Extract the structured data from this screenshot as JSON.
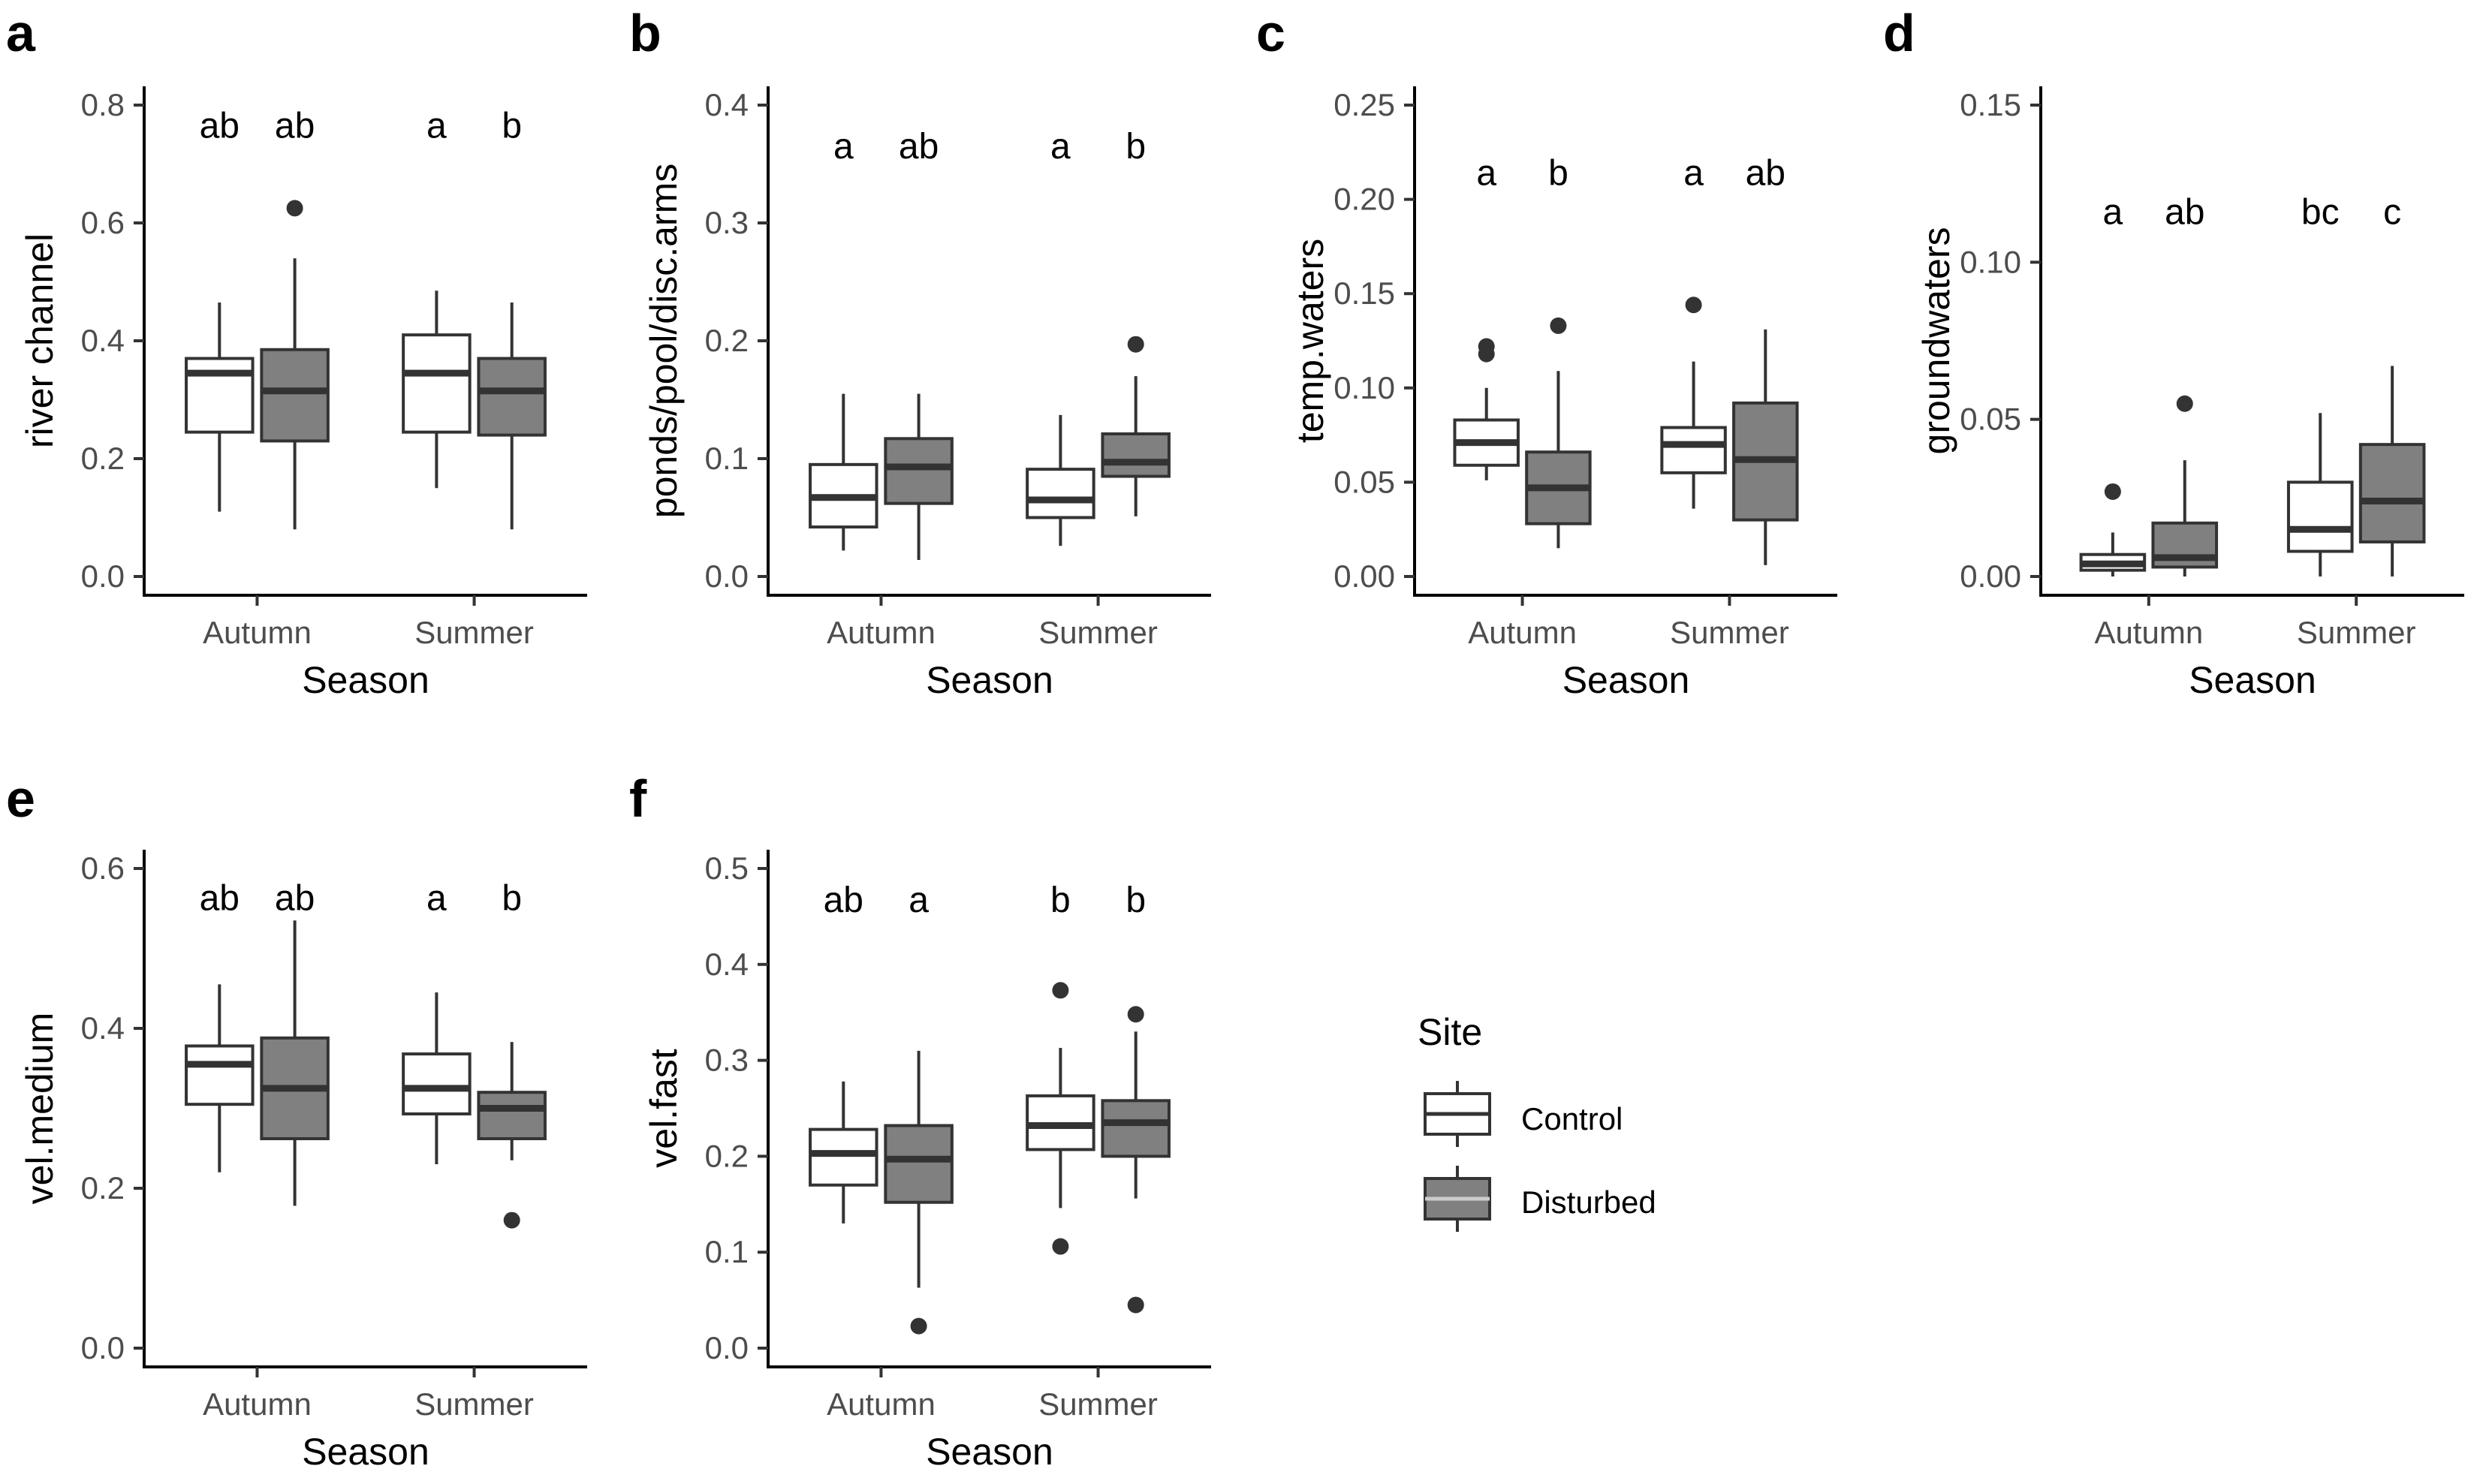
{
  "legend": {
    "title": "Site",
    "entries": [
      {
        "label": "Control",
        "fill": "#ffffff"
      },
      {
        "label": "Disturbed",
        "fill": "#808080"
      }
    ]
  },
  "colors": {
    "control_fill": "#ffffff",
    "disturbed_fill": "#808080",
    "line": "#333333",
    "axis": "#000000"
  },
  "chart_data": [
    {
      "panel": "a",
      "type": "box",
      "xlabel": "Season",
      "ylabel": "river channel",
      "categories": [
        "Autumn",
        "Summer"
      ],
      "ylim": [
        0,
        0.8
      ],
      "yticks": [
        "0.0",
        "0.2",
        "0.4",
        "0.6",
        "0.8"
      ],
      "series": [
        {
          "name": "Control",
          "boxes": [
            {
              "min": 0.11,
              "q1": 0.245,
              "median": 0.345,
              "q3": 0.37,
              "max": 0.465,
              "outliers": []
            },
            {
              "min": 0.15,
              "q1": 0.245,
              "median": 0.345,
              "q3": 0.41,
              "max": 0.485,
              "outliers": []
            }
          ]
        },
        {
          "name": "Disturbed",
          "boxes": [
            {
              "min": 0.08,
              "q1": 0.23,
              "median": 0.315,
              "q3": 0.385,
              "max": 0.54,
              "outliers": [
                0.625
              ]
            },
            {
              "min": 0.08,
              "q1": 0.24,
              "median": 0.315,
              "q3": 0.37,
              "max": 0.465,
              "outliers": []
            }
          ]
        }
      ],
      "sig_labels": [
        [
          "ab",
          "ab"
        ],
        [
          "a",
          "b"
        ]
      ],
      "sig_y": 0.765
    },
    {
      "panel": "b",
      "type": "box",
      "xlabel": "Season",
      "ylabel": "ponds/pool/disc.arms",
      "categories": [
        "Autumn",
        "Summer"
      ],
      "ylim": [
        0,
        0.4
      ],
      "yticks": [
        "0.0",
        "0.1",
        "0.2",
        "0.3",
        "0.4"
      ],
      "series": [
        {
          "name": "Control",
          "boxes": [
            {
              "min": 0.022,
              "q1": 0.042,
              "median": 0.067,
              "q3": 0.095,
              "max": 0.155,
              "outliers": []
            },
            {
              "min": 0.026,
              "q1": 0.05,
              "median": 0.065,
              "q3": 0.091,
              "max": 0.137,
              "outliers": []
            }
          ]
        },
        {
          "name": "Disturbed",
          "boxes": [
            {
              "min": 0.014,
              "q1": 0.062,
              "median": 0.093,
              "q3": 0.117,
              "max": 0.155,
              "outliers": []
            },
            {
              "min": 0.051,
              "q1": 0.085,
              "median": 0.097,
              "q3": 0.121,
              "max": 0.17,
              "outliers": [
                0.197
              ]
            }
          ]
        }
      ],
      "sig_labels": [
        [
          "a",
          "ab"
        ],
        [
          "a",
          "b"
        ]
      ],
      "sig_y": 0.365
    },
    {
      "panel": "c",
      "type": "box",
      "xlabel": "Season",
      "ylabel": "temp.waters",
      "categories": [
        "Autumn",
        "Summer"
      ],
      "ylim": [
        0,
        0.25
      ],
      "yticks": [
        "0.00",
        "0.05",
        "0.10",
        "0.15",
        "0.20",
        "0.25"
      ],
      "series": [
        {
          "name": "Control",
          "boxes": [
            {
              "min": 0.051,
              "q1": 0.059,
              "median": 0.071,
              "q3": 0.083,
              "max": 0.1,
              "outliers": [
                0.118,
                0.122
              ]
            },
            {
              "min": 0.036,
              "q1": 0.055,
              "median": 0.07,
              "q3": 0.079,
              "max": 0.114,
              "outliers": [
                0.144
              ]
            }
          ]
        },
        {
          "name": "Disturbed",
          "boxes": [
            {
              "min": 0.015,
              "q1": 0.028,
              "median": 0.047,
              "q3": 0.066,
              "max": 0.109,
              "outliers": [
                0.133
              ]
            },
            {
              "min": 0.006,
              "q1": 0.03,
              "median": 0.062,
              "q3": 0.092,
              "max": 0.131,
              "outliers": []
            }
          ]
        }
      ],
      "sig_labels": [
        [
          "a",
          "b"
        ],
        [
          "a",
          "ab"
        ]
      ],
      "sig_y": 0.214
    },
    {
      "panel": "d",
      "type": "box",
      "xlabel": "Season",
      "ylabel": "groundwaters",
      "categories": [
        "Autumn",
        "Summer"
      ],
      "ylim": [
        0,
        0.15
      ],
      "yticks": [
        "0.00",
        "0.05",
        "0.10",
        "0.15"
      ],
      "series": [
        {
          "name": "Control",
          "boxes": [
            {
              "min": 0.0,
              "q1": 0.002,
              "median": 0.004,
              "q3": 0.007,
              "max": 0.014,
              "outliers": [
                0.027
              ]
            },
            {
              "min": 0.0,
              "q1": 0.008,
              "median": 0.015,
              "q3": 0.03,
              "max": 0.052,
              "outliers": []
            }
          ]
        },
        {
          "name": "Disturbed",
          "boxes": [
            {
              "min": 0.0,
              "q1": 0.003,
              "median": 0.006,
              "q3": 0.017,
              "max": 0.037,
              "outliers": [
                0.055
              ]
            },
            {
              "min": 0.0,
              "q1": 0.011,
              "median": 0.024,
              "q3": 0.042,
              "max": 0.067,
              "outliers": []
            }
          ]
        }
      ],
      "sig_labels": [
        [
          "a",
          "ab"
        ],
        [
          "bc",
          "c"
        ]
      ],
      "sig_y": 0.116
    },
    {
      "panel": "e",
      "type": "box",
      "xlabel": "Season",
      "ylabel": "vel.medium",
      "categories": [
        "Autumn",
        "Summer"
      ],
      "ylim": [
        0,
        0.6
      ],
      "yticks": [
        "0.0",
        "0.2",
        "0.4",
        "0.6"
      ],
      "series": [
        {
          "name": "Control",
          "boxes": [
            {
              "min": 0.22,
              "q1": 0.305,
              "median": 0.355,
              "q3": 0.378,
              "max": 0.455,
              "outliers": []
            },
            {
              "min": 0.23,
              "q1": 0.293,
              "median": 0.325,
              "q3": 0.368,
              "max": 0.445,
              "outliers": []
            }
          ]
        },
        {
          "name": "Disturbed",
          "boxes": [
            {
              "min": 0.178,
              "q1": 0.262,
              "median": 0.325,
              "q3": 0.388,
              "max": 0.535,
              "outliers": []
            },
            {
              "min": 0.235,
              "q1": 0.262,
              "median": 0.3,
              "q3": 0.32,
              "max": 0.383,
              "outliers": [
                0.16
              ]
            }
          ]
        }
      ],
      "sig_labels": [
        [
          "ab",
          "ab"
        ],
        [
          "a",
          "b"
        ]
      ],
      "sig_y": 0.563
    },
    {
      "panel": "f",
      "type": "box",
      "xlabel": "Season",
      "ylabel": "vel.fast",
      "categories": [
        "Autumn",
        "Summer"
      ],
      "ylim": [
        0,
        0.5
      ],
      "yticks": [
        "0.0",
        "0.1",
        "0.2",
        "0.3",
        "0.4",
        "0.5"
      ],
      "series": [
        {
          "name": "Control",
          "boxes": [
            {
              "min": 0.13,
              "q1": 0.17,
              "median": 0.203,
              "q3": 0.228,
              "max": 0.278,
              "outliers": []
            },
            {
              "min": 0.146,
              "q1": 0.207,
              "median": 0.232,
              "q3": 0.263,
              "max": 0.313,
              "outliers": [
                0.106,
                0.373
              ]
            }
          ]
        },
        {
          "name": "Disturbed",
          "boxes": [
            {
              "min": 0.063,
              "q1": 0.152,
              "median": 0.197,
              "q3": 0.232,
              "max": 0.31,
              "outliers": [
                0.023
              ]
            },
            {
              "min": 0.156,
              "q1": 0.2,
              "median": 0.235,
              "q3": 0.258,
              "max": 0.33,
              "outliers": [
                0.045,
                0.348
              ]
            }
          ]
        }
      ],
      "sig_labels": [
        [
          "ab",
          "a"
        ],
        [
          "b",
          "b"
        ]
      ],
      "sig_y": 0.467
    }
  ]
}
